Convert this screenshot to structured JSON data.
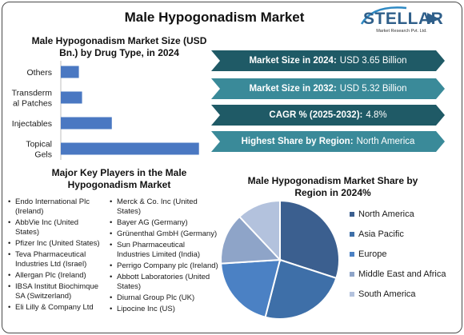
{
  "main_title": "Male Hypogonadism Market",
  "logo": {
    "word": "STELLAR",
    "subtitle": "Market Research Pvt. Ltd."
  },
  "stats": [
    {
      "label": "Market Size in 2024:",
      "value": "USD 3.65 Billion",
      "tone": "dark"
    },
    {
      "label": "Market Size in 2032:",
      "value": "USD 5.32 Billion",
      "tone": "light"
    },
    {
      "label": "CAGR % (2025-2032):",
      "value": "4.8%",
      "tone": "dark"
    },
    {
      "label": "Highest Share by Region:",
      "value": "North America",
      "tone": "light"
    }
  ],
  "players_title": "Major Key Players in the Male Hypogonadism Market",
  "players_col1": [
    [
      "Endo International Plc",
      "(Ireland)"
    ],
    [
      "AbbVie Inc (United",
      "States)"
    ],
    [
      "Pfizer Inc (United States)"
    ],
    [
      "Teva Pharmaceutical",
      "Industries Ltd (Israel)"
    ],
    [
      "Allergan Plc (Ireland)"
    ],
    [
      "IBSA Institut Biochimque",
      "SA (Switzerland)"
    ],
    [
      "Eli Lilly & Company Ltd"
    ]
  ],
  "players_col2": [
    [
      "Merck & Co. Inc (United",
      "States)"
    ],
    [
      "Bayer AG (Germany)"
    ],
    [
      "Grünenthal GmbH (Germany)"
    ],
    [
      "Sun Pharmaceutical",
      "Industries Limited (India)"
    ],
    [
      "Perrigo Company plc (Ireland)"
    ],
    [
      "Abbott Laboratories (United",
      "States)"
    ],
    [
      "Diurnal Group Plc (UK)"
    ],
    [
      "Lipocine Inc (US)"
    ]
  ],
  "chart_data": [
    {
      "type": "bar",
      "orientation": "horizontal",
      "title": "Male Hypogonadism Market Size (USD Bn.) by Drug Type, in 2024",
      "categories": [
        "Others",
        "Transdermal Patches",
        "Injectables",
        "Topical Gels"
      ],
      "category_label_lines": [
        [
          "Others"
        ],
        [
          "Transderm",
          "al Patches"
        ],
        [
          "Injectables"
        ],
        [
          "Topical",
          "Gels"
        ]
      ],
      "values": [
        0.17,
        0.2,
        0.48,
        1.3
      ],
      "xlim": [
        0,
        1.4
      ],
      "grid": false,
      "color": "#4a78c2"
    },
    {
      "type": "pie",
      "title": "Male Hypogonadism Market Share by Region in 2024%",
      "labels": [
        "North America",
        "Asia Pacific",
        "Europe",
        "Middle East and Africa",
        "South America"
      ],
      "values": [
        30,
        24,
        20,
        14,
        12
      ],
      "colors": [
        "#3b5f8f",
        "#3e6fa8",
        "#4b81c4",
        "#8ea4c8",
        "#b3c2dd"
      ],
      "legend_position": "right"
    }
  ]
}
